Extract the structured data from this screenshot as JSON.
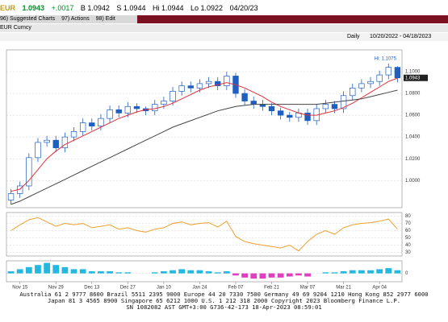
{
  "header": {
    "ticker": "EUR",
    "last": "1.0943",
    "change": "+.0017",
    "bid": "B 1.0942",
    "ask": "S 1.0944",
    "high": "Hi 1.0944",
    "low": "Lo 1.0922",
    "time": "04/20/23",
    "menu": [
      "96) Suggested Charts",
      "97) Actions",
      "98) Edit"
    ],
    "security": "EUR Curncy",
    "range": "10/20/2022 - 04/18/2023",
    "period": "Daily"
  },
  "chart_data": [
    {
      "type": "candlestick",
      "annotation": "Hi: 1.1075",
      "last_label": "1.0943",
      "up_color": "#ffffff",
      "down_color": "#1f5fbf",
      "edge_color": "#1f5fbf",
      "categories": [
        null,
        "Nov 15",
        null,
        null,
        null,
        "Nov 29",
        null,
        null,
        null,
        "Dec 13",
        null,
        null,
        null,
        "Dec 27",
        null,
        null,
        null,
        "Jan 10",
        null,
        null,
        null,
        "Jan 24",
        null,
        null,
        null,
        "Feb 07",
        null,
        null,
        null,
        "Feb 21",
        null,
        null,
        null,
        "Mar 07",
        null,
        null,
        null,
        "Mar 21",
        null,
        null,
        null,
        "Apr 04",
        null,
        null
      ],
      "open": [
        0.982,
        0.988,
        0.995,
        1.021,
        1.035,
        1.037,
        1.03,
        1.04,
        1.045,
        1.053,
        1.05,
        1.057,
        1.065,
        1.062,
        1.068,
        1.066,
        1.064,
        1.07,
        1.073,
        1.082,
        1.087,
        1.085,
        1.089,
        1.091,
        1.087,
        1.096,
        1.08,
        1.073,
        1.07,
        1.068,
        1.064,
        1.06,
        1.058,
        1.062,
        1.055,
        1.066,
        1.07,
        1.066,
        1.078,
        1.085,
        1.089,
        1.091,
        1.097,
        1.104
      ],
      "high": [
        0.992,
        0.999,
        1.025,
        1.039,
        1.041,
        1.041,
        1.044,
        1.049,
        1.057,
        1.057,
        1.061,
        1.069,
        1.069,
        1.072,
        1.071,
        1.068,
        1.074,
        1.077,
        1.086,
        1.091,
        1.091,
        1.093,
        1.095,
        1.095,
        1.1,
        1.099,
        1.084,
        1.077,
        1.074,
        1.071,
        1.067,
        1.063,
        1.066,
        1.066,
        1.07,
        1.074,
        1.073,
        1.082,
        1.089,
        1.093,
        1.095,
        1.101,
        1.1075,
        1.105
      ],
      "low": [
        0.978,
        0.984,
        0.991,
        1.017,
        1.031,
        1.026,
        1.026,
        1.036,
        1.041,
        1.046,
        1.046,
        1.053,
        1.058,
        1.058,
        1.062,
        1.06,
        1.06,
        1.066,
        1.069,
        1.078,
        1.081,
        1.081,
        1.085,
        1.083,
        1.083,
        1.076,
        1.069,
        1.066,
        1.064,
        1.06,
        1.056,
        1.054,
        1.054,
        1.051,
        1.051,
        1.062,
        1.062,
        1.062,
        1.074,
        1.081,
        1.085,
        1.087,
        1.093,
        1.09
      ],
      "close": [
        0.988,
        0.995,
        1.021,
        1.035,
        1.037,
        1.03,
        1.04,
        1.045,
        1.053,
        1.05,
        1.057,
        1.065,
        1.062,
        1.068,
        1.066,
        1.064,
        1.07,
        1.073,
        1.082,
        1.087,
        1.085,
        1.089,
        1.091,
        1.087,
        1.096,
        1.08,
        1.073,
        1.07,
        1.068,
        1.064,
        1.06,
        1.058,
        1.062,
        1.055,
        1.066,
        1.07,
        1.066,
        1.078,
        1.085,
        1.089,
        1.091,
        1.097,
        1.104,
        1.0943
      ],
      "lines": [
        {
          "color": "#e0303a",
          "values": [
            0.99,
            0.992,
            1.0,
            1.01,
            1.02,
            1.027,
            1.033,
            1.037,
            1.041,
            1.045,
            1.049,
            1.053,
            1.057,
            1.06,
            1.063,
            1.065,
            1.066,
            1.068,
            1.071,
            1.075,
            1.079,
            1.083,
            1.086,
            1.088,
            1.09,
            1.088,
            1.085,
            1.081,
            1.077,
            1.072,
            1.068,
            1.065,
            1.062,
            1.06,
            1.06,
            1.062,
            1.064,
            1.067,
            1.071,
            1.076,
            1.081,
            1.086,
            1.091,
            1.094
          ]
        },
        {
          "color": "#444444",
          "values": [
            0.978,
            0.981,
            0.985,
            0.989,
            0.993,
            0.997,
            1.001,
            1.005,
            1.009,
            1.013,
            1.017,
            1.021,
            1.025,
            1.029,
            1.033,
            1.037,
            1.041,
            1.045,
            1.049,
            1.052,
            1.055,
            1.058,
            1.061,
            1.064,
            1.066,
            1.068,
            1.069,
            1.07,
            1.07,
            1.07,
            1.07,
            1.07,
            1.07,
            1.07,
            1.07,
            1.071,
            1.072,
            1.073,
            1.074,
            1.075,
            1.077,
            1.079,
            1.081,
            1.083
          ]
        }
      ],
      "ylim": [
        0.975,
        1.12
      ],
      "yticks": [
        {
          "value": 1.0,
          "label": "1.0000"
        },
        {
          "value": 1.02,
          "label": "1.0200"
        },
        {
          "value": 1.04,
          "label": "1.0400"
        },
        {
          "value": 1.06,
          "label": "1.0600"
        },
        {
          "value": 1.08,
          "label": "1.0800"
        },
        {
          "value": 1.1,
          "label": "1.1000"
        }
      ],
      "grid": true
    },
    {
      "type": "line",
      "color": "#f0a030",
      "values": [
        60,
        68,
        75,
        78,
        72,
        66,
        70,
        68,
        70,
        64,
        66,
        68,
        62,
        64,
        60,
        58,
        62,
        64,
        70,
        72,
        68,
        70,
        71,
        65,
        73,
        52,
        45,
        42,
        40,
        38,
        36,
        40,
        32,
        45,
        55,
        60,
        55,
        64,
        68,
        70,
        71,
        73,
        76,
        62
      ],
      "ylim": [
        25,
        85
      ],
      "yticks": [
        30,
        40,
        50,
        60,
        70,
        80
      ],
      "grid": true
    },
    {
      "type": "bar",
      "color": "#22b8e0",
      "negative_color": "#e040c0",
      "values": [
        0.001,
        0.002,
        0.003,
        0.004,
        0.005,
        0.004,
        0.003,
        0.002,
        0.002,
        0.001,
        0.001,
        0.001,
        0.0005,
        0.0005,
        0,
        0,
        0.0005,
        0.001,
        0.0015,
        0.002,
        0.0015,
        0.0015,
        0.001,
        0.0005,
        0.001,
        -0.001,
        -0.002,
        -0.0025,
        -0.0025,
        -0.002,
        -0.002,
        -0.0015,
        -0.001,
        -0.0015,
        0,
        0.0005,
        0.0005,
        0.001,
        0.0015,
        0.0015,
        0.0015,
        0.002,
        0.0025,
        0.0015
      ],
      "ylim": [
        -0.004,
        0.006
      ],
      "yticks": [
        0
      ],
      "grid": true
    }
  ],
  "footer": [
    "Australia 61 2 9777 8600 Brazil 5511 2395 9000 Europe 44 20 7330 7500 Germany 49 69 9204 1210 Hong Kong 852 2977 6000",
    "Japan 81 3 4565 8900 Singapore 65 6212 1000 U.S. 1 212 318 2000 Copyright 2023 Bloomberg Finance L.P.",
    "SN 1082082 AST GMT+3:00 G736-42-173 18-Apr-2023 08:59:01"
  ]
}
